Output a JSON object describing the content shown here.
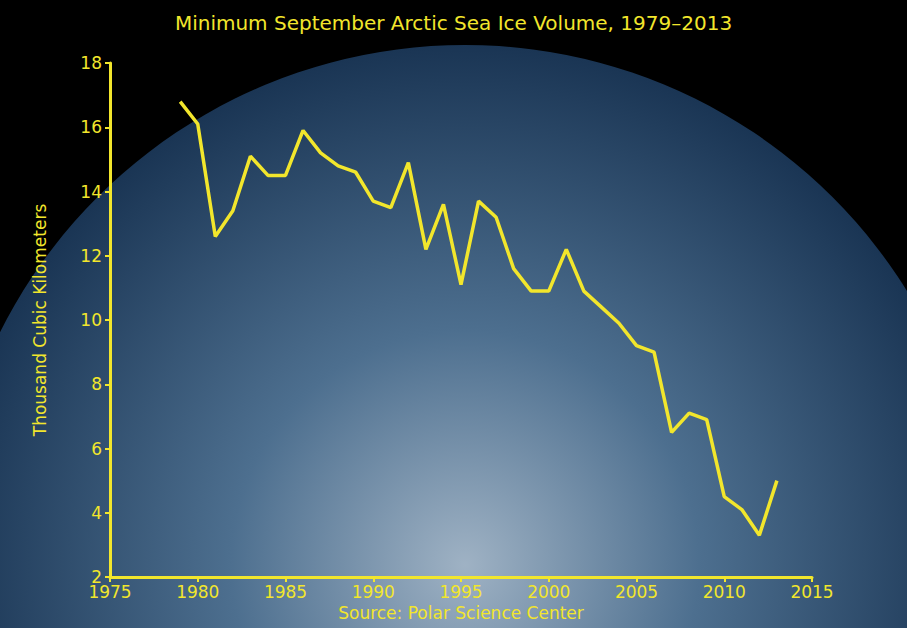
{
  "chart_data": {
    "type": "line",
    "title": "Minimum September Arctic Sea Ice Volume, 1979–2013",
    "x_label": "Source: Polar Science Center",
    "y_label": "Thousand Cubic Kilometers",
    "x": [
      1979,
      1980,
      1981,
      1982,
      1983,
      1984,
      1985,
      1986,
      1987,
      1988,
      1989,
      1990,
      1991,
      1992,
      1993,
      1994,
      1995,
      1996,
      1997,
      1998,
      1999,
      2000,
      2001,
      2002,
      2003,
      2004,
      2005,
      2006,
      2007,
      2008,
      2009,
      2010,
      2011,
      2012,
      2013
    ],
    "values": [
      16.8,
      16.1,
      12.6,
      13.4,
      15.1,
      14.5,
      14.5,
      15.9,
      15.2,
      14.8,
      14.6,
      13.7,
      13.5,
      14.9,
      12.2,
      13.6,
      11.1,
      13.7,
      13.2,
      11.6,
      10.9,
      10.9,
      12.2,
      10.9,
      10.4,
      9.9,
      9.2,
      9.0,
      6.5,
      7.1,
      6.9,
      4.5,
      4.1,
      3.3,
      5.0
    ],
    "color": "#f2e62c",
    "xlim": [
      1975,
      2015
    ],
    "xticks": [
      1975,
      1980,
      1985,
      1990,
      1995,
      2000,
      2005,
      2010,
      2015
    ],
    "ylim": [
      2,
      18
    ],
    "yticks": [
      2,
      4,
      6,
      8,
      10,
      12,
      14,
      16,
      18
    ],
    "grid": false
  }
}
